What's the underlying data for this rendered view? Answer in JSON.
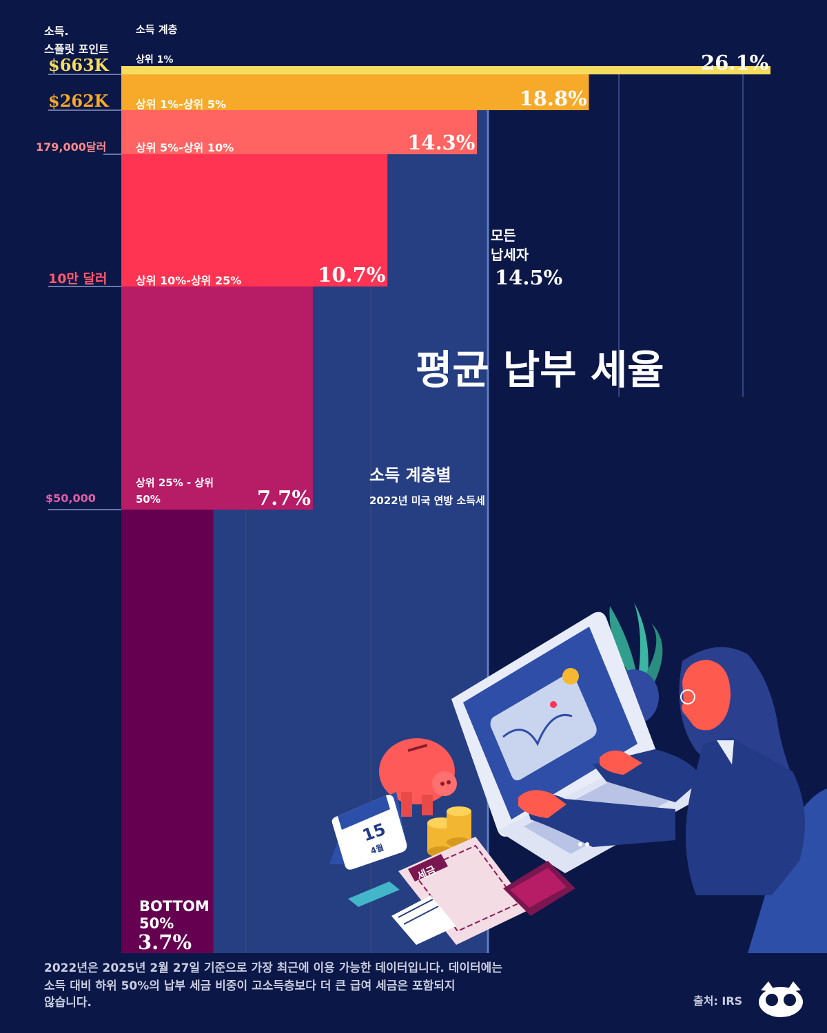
{
  "header": {
    "split_title_line1": "소득.",
    "split_title_line2": "스플릿 포인트",
    "tier_title": "소득 계층"
  },
  "title": "평균 납부 세율",
  "subtitle": "소득 계층별",
  "subtitle2": "2022년 미국 연방 소득세",
  "all_taxpayers": {
    "line1": "모든",
    "line2": "납세자",
    "value_label": "14.5%",
    "value": 14.5
  },
  "colors": {
    "background": "#0b1746",
    "panel": "#263e82",
    "top1": "#f6dd5f",
    "top1_5": "#f7a929",
    "top5_10": "#ff6462",
    "top10_25": "#ff3452",
    "top25_50": "#b71c66",
    "bottom50": "#650050"
  },
  "chart_data": {
    "type": "bar",
    "title": "평균 납부 세율",
    "subtitle": "소득 계층별 — 2022년 미국 연방 소득세",
    "categories": [
      "상위 1%",
      "상위 1%-상위 5%",
      "상위 5%-상위 10%",
      "상위 10%-상위 25%",
      "상위 25% - 상위 50%",
      "BOTTOM 50%"
    ],
    "values": [
      26.1,
      18.8,
      14.3,
      10.7,
      7.7,
      3.7
    ],
    "value_labels": [
      "26.1%",
      "18.8%",
      "14.3%",
      "10.7%",
      "7.7%",
      "3.7%"
    ],
    "income_split_points": [
      "$663K",
      "$262K",
      "179,000달러",
      "10만 달러",
      "$50,000"
    ],
    "population_share_percent": [
      1,
      4,
      5,
      15,
      25,
      50
    ],
    "reference": {
      "label": "모든 납세자",
      "value": 14.5
    },
    "xlim": [
      0,
      26.1
    ],
    "orientation": "horizontal"
  },
  "labels": {
    "split_points": [
      "$663K",
      "$262K",
      "179,000달러",
      "10만 달러",
      "$50,000"
    ],
    "tiers": [
      "상위 1%",
      "상위 1%-상위 5%",
      "상위 5%-상위 10%",
      "상위 10%-상위 25%",
      "상위 25% - 상위",
      "50%"
    ],
    "bottom_line1": "BOTTOM",
    "bottom_line2": "50%"
  },
  "illustration": {
    "calendar_day": "15",
    "calendar_month": "4월",
    "tax_doc": "세금"
  },
  "footer": {
    "note_line1": "2022년은 2025년 2월 27일 기준으로 가장 최근에 이용 가능한 데이터입니다. 데이터에는",
    "note_line2": "소득 대비 하위 50%의 납부 세금 비중이 고소득층보다 더 큰 급여 세금은 포함되지",
    "note_line3": "않습니다.",
    "source": "출처: IRS",
    "logo": "owl-logo-icon"
  }
}
